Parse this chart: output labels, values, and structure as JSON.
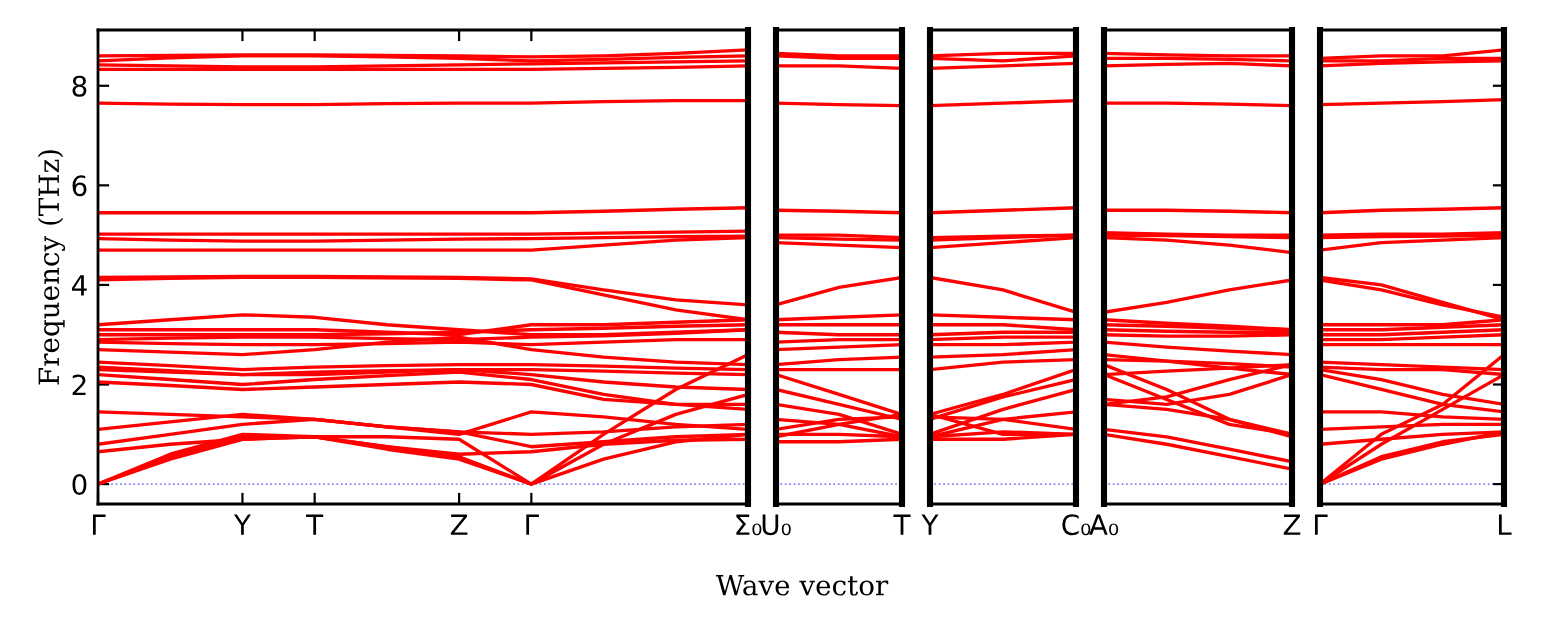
{
  "chart_data": [
    {
      "type": "line",
      "ylabel": "Frequency (THz)",
      "xlabel": "Wave vector",
      "categories": [
        "Γ",
        null,
        "Y",
        "T",
        null,
        "Z",
        "Γ",
        null,
        null,
        "Σ₀"
      ],
      "ylim": [
        -0.4,
        9.12
      ],
      "yticks": [
        0,
        2,
        4,
        6,
        8
      ],
      "grid": false,
      "legend": false,
      "marker": "none",
      "line_style": "solid",
      "ref_lines": [
        {
          "axis": "y",
          "value": 0,
          "color": "#8080ff",
          "line_style": "dotted"
        }
      ],
      "series": [
        {
          "color": "#ff0000",
          "values": [
            8.6,
            8.61,
            8.62,
            8.62,
            8.61,
            8.6,
            8.58,
            8.6,
            8.65,
            8.72
          ]
        },
        {
          "color": "#ff0000",
          "values": [
            8.5,
            8.56,
            8.6,
            8.6,
            8.58,
            8.55,
            8.5,
            8.53,
            8.57,
            8.6
          ]
        },
        {
          "color": "#ff0000",
          "values": [
            8.42,
            8.4,
            8.38,
            8.38,
            8.4,
            8.42,
            8.44,
            8.46,
            8.48,
            8.5
          ]
        },
        {
          "color": "#ff0000",
          "values": [
            8.33,
            8.33,
            8.33,
            8.33,
            8.33,
            8.33,
            8.33,
            8.35,
            8.37,
            8.4
          ]
        },
        {
          "color": "#ff0000",
          "values": [
            7.65,
            7.63,
            7.62,
            7.62,
            7.64,
            7.65,
            7.65,
            7.68,
            7.7,
            7.7
          ]
        },
        {
          "color": "#ff0000",
          "values": [
            5.45,
            5.45,
            5.45,
            5.45,
            5.45,
            5.45,
            5.45,
            5.48,
            5.52,
            5.55
          ]
        },
        {
          "color": "#ff0000",
          "values": [
            5.02,
            5.02,
            5.02,
            5.02,
            5.02,
            5.02,
            5.02,
            5.04,
            5.06,
            5.08
          ]
        },
        {
          "color": "#ff0000",
          "values": [
            4.93,
            4.9,
            4.88,
            4.88,
            4.9,
            4.92,
            4.93,
            4.95,
            4.97,
            4.98
          ]
        },
        {
          "color": "#ff0000",
          "values": [
            4.7,
            4.7,
            4.7,
            4.7,
            4.7,
            4.7,
            4.7,
            4.8,
            4.9,
            4.95
          ]
        },
        {
          "color": "#ff0000",
          "values": [
            4.15,
            4.16,
            4.17,
            4.17,
            4.16,
            4.15,
            4.12,
            3.9,
            3.7,
            3.6
          ]
        },
        {
          "color": "#ff0000",
          "values": [
            4.1,
            4.13,
            4.15,
            4.15,
            4.14,
            4.13,
            4.1,
            3.8,
            3.5,
            3.3
          ]
        },
        {
          "color": "#ff0000",
          "values": [
            3.2,
            3.3,
            3.4,
            3.35,
            3.2,
            3.1,
            3.0,
            3.0,
            3.05,
            3.1
          ]
        },
        {
          "color": "#ff0000",
          "values": [
            3.1,
            3.1,
            3.1,
            3.1,
            3.05,
            3.0,
            3.2,
            3.2,
            3.25,
            3.3
          ]
        },
        {
          "color": "#ff0000",
          "values": [
            3.0,
            3.0,
            3.0,
            3.0,
            3.02,
            3.05,
            3.1,
            3.13,
            3.17,
            3.2
          ]
        },
        {
          "color": "#ff0000",
          "values": [
            2.9,
            2.93,
            2.95,
            2.95,
            2.92,
            2.9,
            2.95,
            2.98,
            3.03,
            3.1
          ]
        },
        {
          "color": "#ff0000",
          "values": [
            2.85,
            2.82,
            2.8,
            2.8,
            2.82,
            2.85,
            2.8,
            2.85,
            2.9,
            2.9
          ]
        },
        {
          "color": "#ff0000",
          "values": [
            2.7,
            2.65,
            2.6,
            2.7,
            2.85,
            2.95,
            2.7,
            2.55,
            2.45,
            2.4
          ]
        },
        {
          "color": "#ff0000",
          "values": [
            2.45,
            2.38,
            2.3,
            2.35,
            2.38,
            2.4,
            2.4,
            2.37,
            2.33,
            2.3
          ]
        },
        {
          "color": "#ff0000",
          "values": [
            2.35,
            2.28,
            2.2,
            2.2,
            2.25,
            2.3,
            2.3,
            2.27,
            2.23,
            2.2
          ]
        },
        {
          "color": "#ff0000",
          "values": [
            2.3,
            2.25,
            2.2,
            2.25,
            2.28,
            2.3,
            2.2,
            2.05,
            1.95,
            1.9
          ]
        },
        {
          "color": "#ff0000",
          "values": [
            2.2,
            2.1,
            2.0,
            2.1,
            2.18,
            2.25,
            2.1,
            1.8,
            1.6,
            1.5
          ]
        },
        {
          "color": "#ff0000",
          "values": [
            2.05,
            1.98,
            1.9,
            1.95,
            2.0,
            2.05,
            2.0,
            1.7,
            1.6,
            1.6
          ]
        },
        {
          "color": "#ff0000",
          "values": [
            1.45,
            1.4,
            1.35,
            1.3,
            1.15,
            1.0,
            1.45,
            1.35,
            1.2,
            1.1
          ]
        },
        {
          "color": "#ff0000",
          "values": [
            1.1,
            1.25,
            1.4,
            1.3,
            1.15,
            1.05,
            1.0,
            1.05,
            1.15,
            1.2
          ]
        },
        {
          "color": "#ff0000",
          "values": [
            0.8,
            1.0,
            1.2,
            1.3,
            1.15,
            1.05,
            0.75,
            0.85,
            0.95,
            1.0
          ]
        },
        {
          "color": "#ff0000",
          "values": [
            0.65,
            0.8,
            0.9,
            0.95,
            0.75,
            0.6,
            0.65,
            0.8,
            0.88,
            0.9
          ]
        },
        {
          "color": "#ff0000",
          "values": [
            0,
            0.5,
            0.9,
            0.95,
            0.7,
            0.5,
            0,
            1.0,
            1.9,
            2.6
          ]
        },
        {
          "color": "#ff0000",
          "values": [
            0,
            0.55,
            0.95,
            0.95,
            0.75,
            0.55,
            0,
            0.8,
            1.4,
            1.8
          ]
        },
        {
          "color": "#ff0000",
          "values": [
            0,
            0.6,
            1.0,
            0.95,
            0.95,
            0.9,
            0,
            0.5,
            0.85,
            1.0
          ]
        }
      ]
    },
    {
      "type": "line",
      "categories": [
        "U₀",
        null,
        "T"
      ],
      "ylim": [
        -0.4,
        9.12
      ],
      "yticks": [
        0,
        2,
        4,
        6,
        8
      ],
      "tick_labels": "x",
      "grid": false,
      "legend": false,
      "marker": "none",
      "line_style": "solid",
      "ref_lines": [
        {
          "axis": "y",
          "value": 0,
          "color": "#8080ff",
          "line_style": "dotted"
        }
      ],
      "series": [
        {
          "color": "#ff0000",
          "values": [
            8.65,
            8.6,
            8.6
          ]
        },
        {
          "color": "#ff0000",
          "values": [
            8.6,
            8.55,
            8.55
          ]
        },
        {
          "color": "#ff0000",
          "values": [
            8.4,
            8.4,
            8.35
          ]
        },
        {
          "color": "#ff0000",
          "values": [
            7.65,
            7.62,
            7.6
          ]
        },
        {
          "color": "#ff0000",
          "values": [
            5.5,
            5.48,
            5.45
          ]
        },
        {
          "color": "#ff0000",
          "values": [
            5.0,
            5.0,
            4.95
          ]
        },
        {
          "color": "#ff0000",
          "values": [
            4.95,
            4.92,
            4.9
          ]
        },
        {
          "color": "#ff0000",
          "values": [
            4.85,
            4.8,
            4.75
          ]
        },
        {
          "color": "#ff0000",
          "values": [
            3.6,
            3.95,
            4.15
          ]
        },
        {
          "color": "#ff0000",
          "values": [
            3.3,
            3.35,
            3.4
          ]
        },
        {
          "color": "#ff0000",
          "values": [
            3.2,
            3.2,
            3.2
          ]
        },
        {
          "color": "#ff0000",
          "values": [
            3.05,
            3.0,
            3.0
          ]
        },
        {
          "color": "#ff0000",
          "values": [
            2.85,
            2.9,
            2.9
          ]
        },
        {
          "color": "#ff0000",
          "values": [
            2.7,
            2.75,
            2.8
          ]
        },
        {
          "color": "#ff0000",
          "values": [
            2.4,
            2.5,
            2.55
          ]
        },
        {
          "color": "#ff0000",
          "values": [
            2.3,
            2.3,
            2.3
          ]
        },
        {
          "color": "#ff0000",
          "values": [
            2.2,
            1.8,
            1.4
          ]
        },
        {
          "color": "#ff0000",
          "values": [
            1.9,
            1.6,
            1.3
          ]
        },
        {
          "color": "#ff0000",
          "values": [
            1.6,
            1.4,
            1.0
          ]
        },
        {
          "color": "#ff0000",
          "values": [
            1.3,
            1.2,
            0.95
          ]
        },
        {
          "color": "#ff0000",
          "values": [
            1.1,
            1.3,
            1.35
          ]
        },
        {
          "color": "#ff0000",
          "values": [
            0.95,
            1.2,
            1.4
          ]
        },
        {
          "color": "#ff0000",
          "values": [
            0.85,
            0.85,
            0.9
          ]
        },
        {
          "color": "#ff0000",
          "values": [
            1.0,
            1.0,
            0.95
          ]
        }
      ]
    },
    {
      "type": "line",
      "categories": [
        "Y",
        null,
        "C₀"
      ],
      "ylim": [
        -0.4,
        9.12
      ],
      "yticks": [
        0,
        2,
        4,
        6,
        8
      ],
      "tick_labels": "x",
      "grid": false,
      "legend": false,
      "marker": "none",
      "line_style": "solid",
      "ref_lines": [
        {
          "axis": "y",
          "value": 0,
          "color": "#8080ff",
          "line_style": "dotted"
        }
      ],
      "series": [
        {
          "color": "#ff0000",
          "values": [
            8.6,
            8.65,
            8.65
          ]
        },
        {
          "color": "#ff0000",
          "values": [
            8.55,
            8.5,
            8.6
          ]
        },
        {
          "color": "#ff0000",
          "values": [
            8.35,
            8.4,
            8.45
          ]
        },
        {
          "color": "#ff0000",
          "values": [
            7.6,
            7.65,
            7.7
          ]
        },
        {
          "color": "#ff0000",
          "values": [
            5.45,
            5.5,
            5.55
          ]
        },
        {
          "color": "#ff0000",
          "values": [
            4.95,
            4.98,
            5.0
          ]
        },
        {
          "color": "#ff0000",
          "values": [
            4.9,
            4.95,
            5.0
          ]
        },
        {
          "color": "#ff0000",
          "values": [
            4.75,
            4.85,
            4.95
          ]
        },
        {
          "color": "#ff0000",
          "values": [
            4.15,
            3.9,
            3.45
          ]
        },
        {
          "color": "#ff0000",
          "values": [
            3.4,
            3.35,
            3.3
          ]
        },
        {
          "color": "#ff0000",
          "values": [
            3.2,
            3.2,
            3.1
          ]
        },
        {
          "color": "#ff0000",
          "values": [
            3.0,
            3.05,
            3.05
          ]
        },
        {
          "color": "#ff0000",
          "values": [
            2.9,
            2.95,
            2.95
          ]
        },
        {
          "color": "#ff0000",
          "values": [
            2.8,
            2.8,
            2.85
          ]
        },
        {
          "color": "#ff0000",
          "values": [
            2.55,
            2.6,
            2.7
          ]
        },
        {
          "color": "#ff0000",
          "values": [
            2.3,
            2.45,
            2.5
          ]
        },
        {
          "color": "#ff0000",
          "values": [
            1.4,
            1.8,
            2.3
          ]
        },
        {
          "color": "#ff0000",
          "values": [
            1.3,
            1.75,
            2.1
          ]
        },
        {
          "color": "#ff0000",
          "values": [
            1.0,
            1.5,
            1.9
          ]
        },
        {
          "color": "#ff0000",
          "values": [
            0.95,
            1.3,
            1.45
          ]
        },
        {
          "color": "#ff0000",
          "values": [
            1.35,
            1.3,
            1.1
          ]
        },
        {
          "color": "#ff0000",
          "values": [
            1.4,
            1.0,
            1.0
          ]
        },
        {
          "color": "#ff0000",
          "values": [
            0.9,
            0.9,
            1.0
          ]
        },
        {
          "color": "#ff0000",
          "values": [
            0.95,
            1.05,
            1.0
          ]
        }
      ]
    },
    {
      "type": "line",
      "categories": [
        "A₀",
        null,
        null,
        "Z"
      ],
      "ylim": [
        -0.4,
        9.12
      ],
      "yticks": [
        0,
        2,
        4,
        6,
        8
      ],
      "tick_labels": "x",
      "grid": false,
      "legend": false,
      "marker": "none",
      "line_style": "solid",
      "ref_lines": [
        {
          "axis": "y",
          "value": 0,
          "color": "#8080ff",
          "line_style": "dotted"
        }
      ],
      "series": [
        {
          "color": "#ff0000",
          "values": [
            8.65,
            8.62,
            8.6,
            8.6
          ]
        },
        {
          "color": "#ff0000",
          "values": [
            8.55,
            8.55,
            8.53,
            8.5
          ]
        },
        {
          "color": "#ff0000",
          "values": [
            8.4,
            8.43,
            8.45,
            8.4
          ]
        },
        {
          "color": "#ff0000",
          "values": [
            7.65,
            7.65,
            7.63,
            7.6
          ]
        },
        {
          "color": "#ff0000",
          "values": [
            5.5,
            5.5,
            5.48,
            5.45
          ]
        },
        {
          "color": "#ff0000",
          "values": [
            5.05,
            5.02,
            5.0,
            5.0
          ]
        },
        {
          "color": "#ff0000",
          "values": [
            5.0,
            4.99,
            4.97,
            4.95
          ]
        },
        {
          "color": "#ff0000",
          "values": [
            4.95,
            4.9,
            4.8,
            4.65
          ]
        },
        {
          "color": "#ff0000",
          "values": [
            3.45,
            3.65,
            3.9,
            4.1
          ]
        },
        {
          "color": "#ff0000",
          "values": [
            3.3,
            3.23,
            3.17,
            3.1
          ]
        },
        {
          "color": "#ff0000",
          "values": [
            3.2,
            3.17,
            3.13,
            3.1
          ]
        },
        {
          "color": "#ff0000",
          "values": [
            3.1,
            3.07,
            3.05,
            3.05
          ]
        },
        {
          "color": "#ff0000",
          "values": [
            3.0,
            2.97,
            2.97,
            3.0
          ]
        },
        {
          "color": "#ff0000",
          "values": [
            2.85,
            2.75,
            2.67,
            2.6
          ]
        },
        {
          "color": "#ff0000",
          "values": [
            2.6,
            2.47,
            2.33,
            2.2
          ]
        },
        {
          "color": "#ff0000",
          "values": [
            2.5,
            2.47,
            2.42,
            2.35
          ]
        },
        {
          "color": "#ff0000",
          "values": [
            2.2,
            2.27,
            2.33,
            2.4
          ]
        },
        {
          "color": "#ff0000",
          "values": [
            1.7,
            1.6,
            1.8,
            2.2
          ]
        },
        {
          "color": "#ff0000",
          "values": [
            1.6,
            1.75,
            2.1,
            2.4
          ]
        },
        {
          "color": "#ff0000",
          "values": [
            2.4,
            1.9,
            1.3,
            0.95
          ]
        },
        {
          "color": "#ff0000",
          "values": [
            2.2,
            1.7,
            1.2,
            1.0
          ]
        },
        {
          "color": "#ff0000",
          "values": [
            1.1,
            0.95,
            0.7,
            0.45
          ]
        },
        {
          "color": "#ff0000",
          "values": [
            1.0,
            0.8,
            0.55,
            0.3
          ]
        },
        {
          "color": "#ff0000",
          "values": [
            1.6,
            1.5,
            1.3,
            1.0
          ]
        }
      ]
    },
    {
      "type": "line",
      "categories": [
        "Γ",
        null,
        null,
        "L"
      ],
      "ylim": [
        -0.4,
        9.12
      ],
      "yticks": [
        0,
        2,
        4,
        6,
        8
      ],
      "tick_labels": "x",
      "grid": false,
      "legend": false,
      "marker": "none",
      "line_style": "solid",
      "ref_lines": [
        {
          "axis": "y",
          "value": 0,
          "color": "#8080ff",
          "line_style": "dotted"
        }
      ],
      "series": [
        {
          "color": "#ff0000",
          "values": [
            8.55,
            8.6,
            8.6,
            8.72
          ]
        },
        {
          "color": "#ff0000",
          "values": [
            8.5,
            8.5,
            8.55,
            8.55
          ]
        },
        {
          "color": "#ff0000",
          "values": [
            8.4,
            8.45,
            8.48,
            8.5
          ]
        },
        {
          "color": "#ff0000",
          "values": [
            7.62,
            7.65,
            7.68,
            7.72
          ]
        },
        {
          "color": "#ff0000",
          "values": [
            5.45,
            5.5,
            5.52,
            5.55
          ]
        },
        {
          "color": "#ff0000",
          "values": [
            5.0,
            5.02,
            5.02,
            5.05
          ]
        },
        {
          "color": "#ff0000",
          "values": [
            4.95,
            4.97,
            4.98,
            5.0
          ]
        },
        {
          "color": "#ff0000",
          "values": [
            4.7,
            4.85,
            4.9,
            4.95
          ]
        },
        {
          "color": "#ff0000",
          "values": [
            4.15,
            4.0,
            3.65,
            3.3
          ]
        },
        {
          "color": "#ff0000",
          "values": [
            4.1,
            3.9,
            3.6,
            3.35
          ]
        },
        {
          "color": "#ff0000",
          "values": [
            3.2,
            3.2,
            3.2,
            3.3
          ]
        },
        {
          "color": "#ff0000",
          "values": [
            3.1,
            3.1,
            3.15,
            3.2
          ]
        },
        {
          "color": "#ff0000",
          "values": [
            3.0,
            3.0,
            3.05,
            3.1
          ]
        },
        {
          "color": "#ff0000",
          "values": [
            2.9,
            2.9,
            2.95,
            3.0
          ]
        },
        {
          "color": "#ff0000",
          "values": [
            2.8,
            2.8,
            2.8,
            2.8
          ]
        },
        {
          "color": "#ff0000",
          "values": [
            2.45,
            2.4,
            2.35,
            2.3
          ]
        },
        {
          "color": "#ff0000",
          "values": [
            2.35,
            2.3,
            2.3,
            2.2
          ]
        },
        {
          "color": "#ff0000",
          "values": [
            2.3,
            2.1,
            1.8,
            1.6
          ]
        },
        {
          "color": "#ff0000",
          "values": [
            2.2,
            1.9,
            1.6,
            1.45
          ]
        },
        {
          "color": "#ff0000",
          "values": [
            1.45,
            1.45,
            1.35,
            1.3
          ]
        },
        {
          "color": "#ff0000",
          "values": [
            1.1,
            1.15,
            1.2,
            1.2
          ]
        },
        {
          "color": "#ff0000",
          "values": [
            0.8,
            0.9,
            1.0,
            1.05
          ]
        },
        {
          "color": "#ff0000",
          "values": [
            0,
            1.0,
            1.6,
            2.6
          ]
        },
        {
          "color": "#ff0000",
          "values": [
            0,
            0.8,
            1.5,
            2.2
          ]
        },
        {
          "color": "#ff0000",
          "values": [
            0,
            0.5,
            0.8,
            1.05
          ]
        },
        {
          "color": "#ff0000",
          "values": [
            0,
            0.55,
            0.85,
            1.0
          ]
        }
      ]
    }
  ]
}
